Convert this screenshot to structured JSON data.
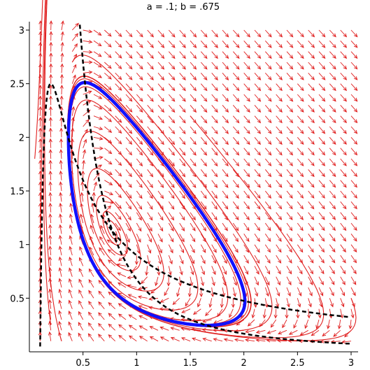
{
  "chart_data": {
    "type": "line",
    "title": "a = .1;   b = .675",
    "params": {
      "a": 0.1,
      "b": 0.675
    },
    "xlim": [
      0,
      3
    ],
    "ylim": [
      0,
      3
    ],
    "x_ticks": [
      "0.5",
      "1",
      "1.5",
      "2",
      "2.5",
      "3"
    ],
    "y_ticks": [
      "0.5",
      "1",
      "1.5",
      "2",
      "2.5",
      "3"
    ],
    "x_tick_values": [
      0.5,
      1,
      1.5,
      2,
      2.5,
      3
    ],
    "y_tick_values": [
      0.5,
      1,
      1.5,
      2,
      2.5,
      3
    ],
    "grid": false,
    "direction_field": {
      "color": "#e02020",
      "x_step": 0.1,
      "y_step": 0.1
    },
    "trajectories": {
      "color": "#e02020",
      "starts": [
        [
          0.2,
          0.25
        ],
        [
          0.1,
          0.6
        ],
        [
          0.3,
          0.1
        ],
        [
          3.0,
          0.5
        ],
        [
          0.4,
          2.7
        ],
        [
          2.0,
          0.3
        ],
        [
          0.05,
          1.8
        ],
        [
          1.5,
          2.2
        ]
      ]
    },
    "limit_cycle": {
      "color": "#1010ff",
      "start": [
        0.9,
        0.62
      ]
    },
    "nullclines": [
      {
        "name": "x-nullcline",
        "style": "dashed",
        "color": "#000000"
      },
      {
        "name": "y-nullcline",
        "style": "dashed",
        "color": "#000000"
      }
    ]
  }
}
